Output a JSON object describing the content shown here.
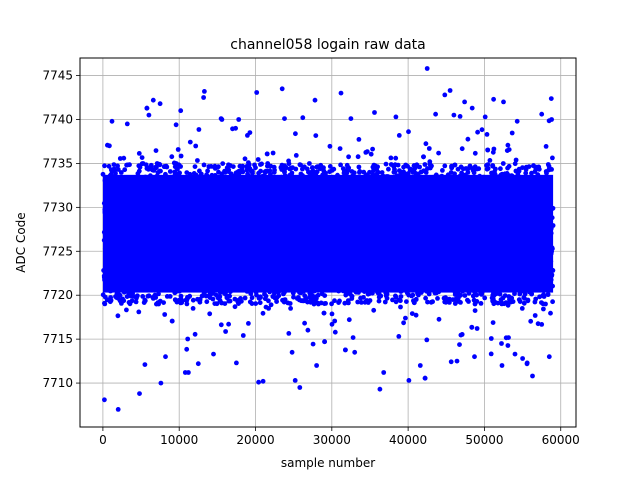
{
  "chart_data": {
    "type": "scatter",
    "title": "channel058 logain raw data",
    "xlabel": "sample number",
    "ylabel": "ADC Code",
    "xlim": [
      -3000,
      62000
    ],
    "ylim": [
      7705.0,
      7747.0
    ],
    "x_ticks": [
      0,
      10000,
      20000,
      30000,
      40000,
      50000,
      60000
    ],
    "y_ticks": [
      7710,
      7715,
      7720,
      7725,
      7730,
      7735,
      7740,
      7745
    ],
    "grid": true,
    "marker_color": "#0000ff",
    "series": [
      {
        "n_samples": 59000,
        "band": {
          "core_low": 7719,
          "core_high": 7735,
          "typical_low": 7716,
          "typical_high": 7737
        },
        "outliers": [
          [
            200,
            7708.1
          ],
          [
            2000,
            7707.0
          ],
          [
            4800,
            7708.8
          ],
          [
            7600,
            7710.0
          ],
          [
            6600,
            7742.2
          ],
          [
            10200,
            7741.0
          ],
          [
            13300,
            7743.2
          ],
          [
            13200,
            7742.5
          ],
          [
            20400,
            7710.1
          ],
          [
            21000,
            7710.2
          ],
          [
            23500,
            7743.5
          ],
          [
            25200,
            7710.3
          ],
          [
            25800,
            7709.5
          ],
          [
            27800,
            7742.2
          ],
          [
            31200,
            7743.0
          ],
          [
            36300,
            7709.3
          ],
          [
            40100,
            7710.3
          ],
          [
            42500,
            7745.8
          ],
          [
            44800,
            7742.8
          ],
          [
            45500,
            7743.3
          ],
          [
            47400,
            7742.0
          ],
          [
            48400,
            7741.3
          ],
          [
            51200,
            7742.3
          ],
          [
            52500,
            7742.0
          ],
          [
            56300,
            7710.8
          ],
          [
            57500,
            7740.6
          ],
          [
            10800,
            7711.2
          ],
          [
            11200,
            7711.2
          ],
          [
            5500,
            7712.1
          ],
          [
            12500,
            7712.2
          ],
          [
            17500,
            7712.3
          ],
          [
            28000,
            7712.0
          ],
          [
            36800,
            7711.2
          ],
          [
            41600,
            7712.0
          ],
          [
            46400,
            7712.5
          ],
          [
            52300,
            7712.0
          ],
          [
            54000,
            7713.3
          ],
          [
            55000,
            7712.8
          ],
          [
            55600,
            7712.3
          ],
          [
            58500,
            7713.0
          ],
          [
            8200,
            7713.0
          ],
          [
            14500,
            7713.3
          ],
          [
            24800,
            7713.5
          ],
          [
            33000,
            7713.5
          ],
          [
            48700,
            7713.0
          ],
          [
            1200,
            7739.8
          ],
          [
            3200,
            7739.5
          ],
          [
            9600,
            7739.4
          ],
          [
            15600,
            7740.0
          ],
          [
            17800,
            7740.0
          ],
          [
            23800,
            7740.1
          ],
          [
            26200,
            7740.2
          ],
          [
            32500,
            7740.1
          ],
          [
            35600,
            7740.8
          ],
          [
            38400,
            7740.3
          ],
          [
            43600,
            7740.6
          ],
          [
            46000,
            7740.5
          ],
          [
            50100,
            7740.3
          ],
          [
            54300,
            7739.8
          ],
          [
            58800,
            7740.0
          ]
        ]
      }
    ]
  }
}
